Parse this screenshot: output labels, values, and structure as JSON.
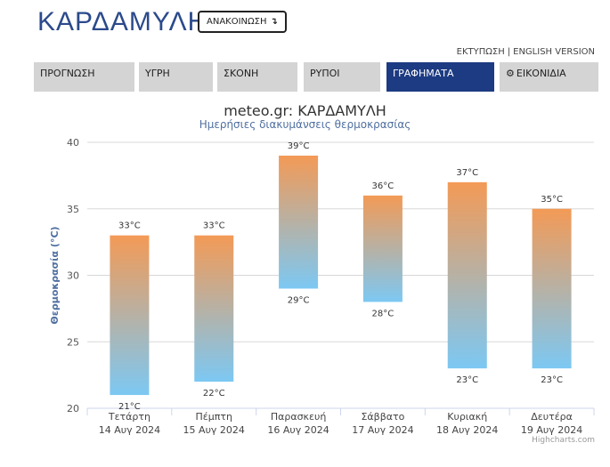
{
  "header": {
    "title": "ΚΑΡΔΑΜΥΛΗ",
    "announce_label": "ΑΝΑΚΟΙΝΩΣΗ",
    "announce_icon": "arrow-corner-icon",
    "print_link": "ΕΚΤΥΠΩΣΗ",
    "separator": "|",
    "english_link": "ENGLISH VERSION"
  },
  "tabs": [
    {
      "label": "ΠΡΟΓΝΩΣΗ",
      "active": false
    },
    {
      "label": "ΥΓΡΗ",
      "active": false
    },
    {
      "label": "ΣΚΟΝΗ",
      "active": false
    },
    {
      "label": "ΡΥΠΟΙ",
      "active": false
    },
    {
      "label": "ΓΡΑΦΗΜΑΤΑ",
      "active": true
    },
    {
      "label": "ΕΙΚΟΝΙΔΙΑ",
      "active": false,
      "icon": "gear-icon"
    }
  ],
  "colors": {
    "accent": "#1d3b82",
    "tab_bg": "#d4d4d4",
    "bar_top": "#f39a56",
    "bar_bottom": "#7cc8f3"
  },
  "chart_data": {
    "type": "columnrange",
    "title": "meteo.gr: ΚΑΡΔΑΜΥΛΗ",
    "subtitle": "Ημερήσιες διακυμάνσεις θερμοκρασίας",
    "ylabel": "Θερμοκρασία (°C)",
    "ylim": [
      20,
      40
    ],
    "yticks": [
      20,
      25,
      30,
      35,
      40
    ],
    "grid": true,
    "categories": [
      {
        "day": "Τετάρτη",
        "date": "14 Αυγ 2024"
      },
      {
        "day": "Πέμπτη",
        "date": "15 Αυγ 2024"
      },
      {
        "day": "Παρασκευή",
        "date": "16 Αυγ 2024"
      },
      {
        "day": "Σάββατο",
        "date": "17 Αυγ 2024"
      },
      {
        "day": "Κυριακή",
        "date": "18 Αυγ 2024"
      },
      {
        "day": "Δευτέρα",
        "date": "19 Αυγ 2024"
      }
    ],
    "low": [
      21,
      22,
      29,
      28,
      23,
      23
    ],
    "high": [
      33,
      33,
      39,
      36,
      37,
      35
    ],
    "unit": "°C"
  },
  "credits": "Highcharts.com"
}
